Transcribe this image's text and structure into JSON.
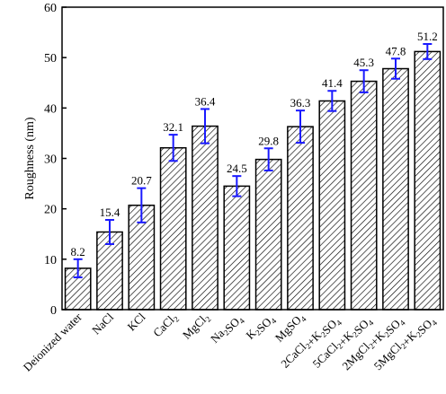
{
  "chart_data": {
    "type": "bar",
    "title": "",
    "xlabel": "",
    "ylabel": "Roughness (nm)",
    "ylim": [
      0,
      60
    ],
    "yticks": [
      0,
      10,
      20,
      30,
      40,
      50,
      60
    ],
    "grid": false,
    "bar_fill": "diagonal-hatch",
    "error_bar_color": "#1a1aff",
    "categories": [
      [
        {
          "t": "Deionized water"
        }
      ],
      [
        {
          "t": "NaCl"
        }
      ],
      [
        {
          "t": "KCl"
        }
      ],
      [
        {
          "t": "CaCl"
        },
        {
          "t": "2",
          "sub": true
        }
      ],
      [
        {
          "t": "MgCl"
        },
        {
          "t": "2",
          "sub": true
        }
      ],
      [
        {
          "t": "Na"
        },
        {
          "t": "2",
          "sub": true
        },
        {
          "t": "SO"
        },
        {
          "t": "4",
          "sub": true
        }
      ],
      [
        {
          "t": "K"
        },
        {
          "t": "2",
          "sub": true
        },
        {
          "t": "SO"
        },
        {
          "t": "4",
          "sub": true
        }
      ],
      [
        {
          "t": "MgSO"
        },
        {
          "t": "4",
          "sub": true
        }
      ],
      [
        {
          "t": "2CaCl"
        },
        {
          "t": "2",
          "sub": true
        },
        {
          "t": "+K"
        },
        {
          "t": "2",
          "sub": true
        },
        {
          "t": "SO"
        },
        {
          "t": "4",
          "sub": true
        }
      ],
      [
        {
          "t": "5CaCl"
        },
        {
          "t": "2",
          "sub": true
        },
        {
          "t": "+K"
        },
        {
          "t": "2",
          "sub": true
        },
        {
          "t": "SO"
        },
        {
          "t": "4",
          "sub": true
        }
      ],
      [
        {
          "t": "2MgCl"
        },
        {
          "t": "2",
          "sub": true
        },
        {
          "t": "+K"
        },
        {
          "t": "2",
          "sub": true
        },
        {
          "t": "SO"
        },
        {
          "t": "4",
          "sub": true
        }
      ],
      [
        {
          "t": "5MgCl"
        },
        {
          "t": "2",
          "sub": true
        },
        {
          "t": "+K"
        },
        {
          "t": "2",
          "sub": true
        },
        {
          "t": "SO"
        },
        {
          "t": "4",
          "sub": true
        }
      ]
    ],
    "values": [
      8.2,
      15.4,
      20.7,
      32.1,
      36.4,
      24.5,
      29.8,
      36.3,
      41.4,
      45.3,
      47.8,
      51.2
    ],
    "value_labels": [
      "8.2",
      "15.4",
      "20.7",
      "32.1",
      "36.4",
      "24.5",
      "29.8",
      "36.3",
      "41.4",
      "45.3",
      "47.8",
      "51.2"
    ],
    "errors": [
      1.8,
      2.4,
      3.4,
      2.6,
      3.4,
      2.0,
      2.2,
      3.2,
      2.0,
      2.2,
      2.0,
      1.5
    ]
  }
}
